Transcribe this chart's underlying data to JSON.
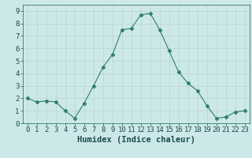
{
  "x": [
    0,
    1,
    2,
    3,
    4,
    5,
    6,
    7,
    8,
    9,
    10,
    11,
    12,
    13,
    14,
    15,
    16,
    17,
    18,
    19,
    20,
    21,
    22,
    23
  ],
  "y": [
    2.0,
    1.7,
    1.8,
    1.7,
    1.0,
    0.4,
    1.6,
    3.0,
    4.5,
    5.5,
    7.5,
    7.6,
    8.7,
    8.8,
    7.5,
    5.8,
    4.1,
    3.2,
    2.6,
    1.4,
    0.4,
    0.5,
    0.9,
    1.0
  ],
  "xlabel": "Humidex (Indice chaleur)",
  "xlim": [
    -0.5,
    23.5
  ],
  "ylim": [
    0,
    9.5
  ],
  "yticks": [
    0,
    1,
    2,
    3,
    4,
    5,
    6,
    7,
    8,
    9
  ],
  "xticks": [
    0,
    1,
    2,
    3,
    4,
    5,
    6,
    7,
    8,
    9,
    10,
    11,
    12,
    13,
    14,
    15,
    16,
    17,
    18,
    19,
    20,
    21,
    22,
    23
  ],
  "line_color": "#2e7d6e",
  "marker": "D",
  "marker_size": 2.5,
  "bg_color": "#cde8e8",
  "grid_color": "#b8d4d4",
  "tick_fontsize": 6.5,
  "label_fontsize": 7.5
}
